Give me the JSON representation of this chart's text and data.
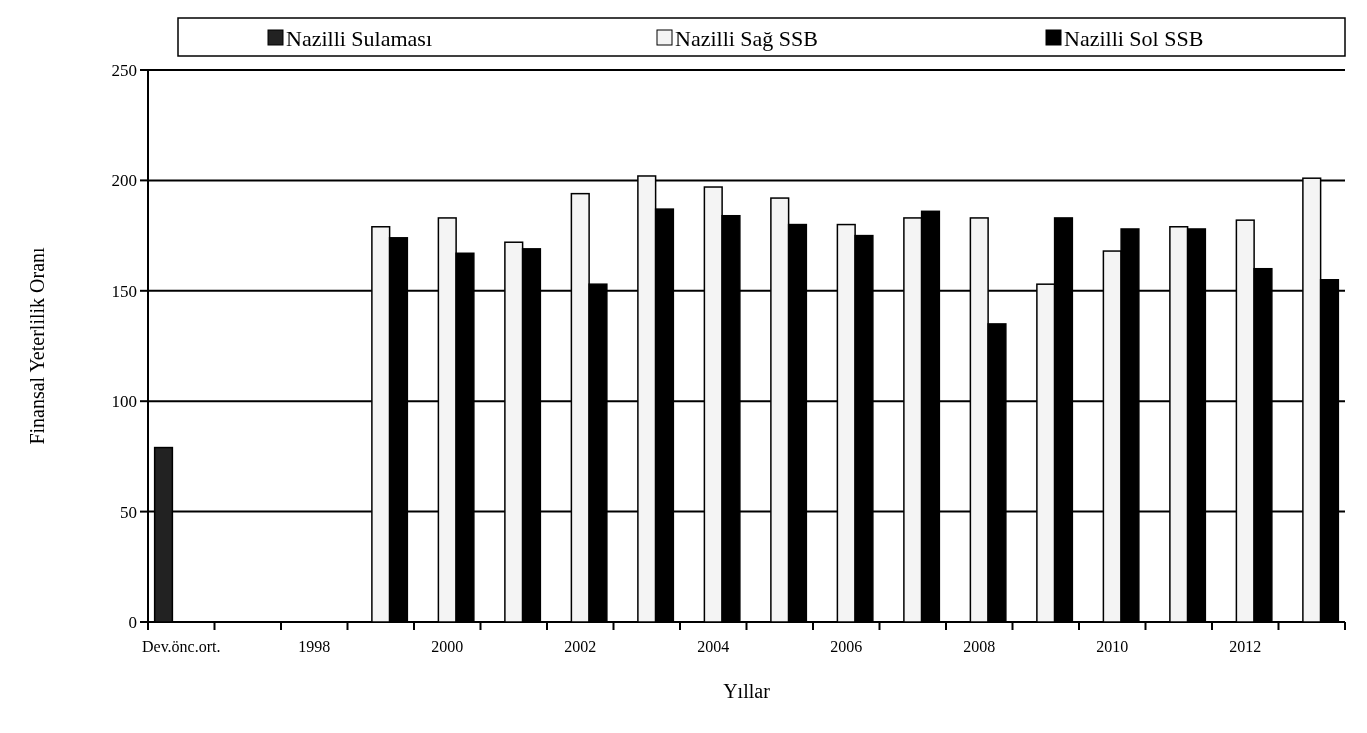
{
  "chart_data": {
    "type": "bar",
    "xlabel": "Yıllar",
    "ylabel": "Finansal Yeterlilik Oranı",
    "categories": [
      "Dev.önc.ort.",
      null,
      "1998",
      null,
      "2000",
      null,
      "2002",
      null,
      "2004",
      null,
      "2006",
      null,
      "2008",
      null,
      "2010",
      null,
      "2012",
      null
    ],
    "series": [
      {
        "name": "Nazilli Sulaması",
        "color": "#222222",
        "values": [
          79,
          null,
          null,
          null,
          null,
          null,
          null,
          null,
          null,
          null,
          null,
          null,
          null,
          null,
          null,
          null,
          null,
          null
        ]
      },
      {
        "name": "Nazilli Sağ SSB",
        "color": "#f4f4f4",
        "values": [
          null,
          null,
          null,
          179,
          183,
          172,
          194,
          202,
          197,
          192,
          180,
          183,
          183,
          153,
          168,
          179,
          182,
          201
        ]
      },
      {
        "name": "Nazilli Sol SSB",
        "color": "#000000",
        "values": [
          null,
          null,
          null,
          174,
          167,
          169,
          153,
          187,
          184,
          180,
          175,
          186,
          135,
          183,
          178,
          178,
          160,
          155
        ]
      }
    ],
    "ylim": [
      0,
      250
    ],
    "yticks": [
      0,
      50,
      100,
      150,
      200,
      250
    ],
    "grid": "y",
    "legend": "top"
  }
}
